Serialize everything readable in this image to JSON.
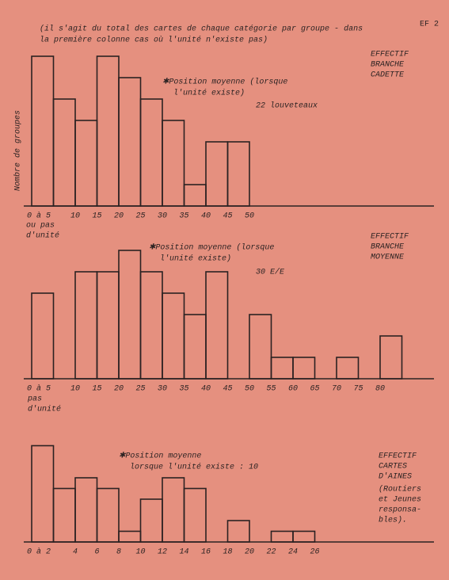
{
  "page_label": "EF 2",
  "note": [
    "(il s'agit du total des cartes de chaque catégorie par groupe - dans",
    "la première colonne cas où l'unité n'existe pas)"
  ],
  "chart_data": [
    {
      "type": "histogram",
      "y_label": "Nombre de groupes",
      "side_label": [
        "EFFECTIF",
        "BRANCHE",
        "CADETTE"
      ],
      "annotation": [
        "✱Position moyenne (lorsque",
        "l'unité existe)"
      ],
      "mean": "22 louveteaux",
      "edge_labels": [
        "0 à 5",
        null,
        "10",
        "15",
        "20",
        "25",
        "30",
        "35",
        "40",
        "45",
        "50"
      ],
      "edge_note": [
        "ou pas",
        "d'unité"
      ],
      "values": [
        7,
        5,
        4,
        7,
        6,
        5,
        4,
        1,
        3,
        3
      ],
      "ylim": [
        0,
        8
      ],
      "color": "#2b2222"
    },
    {
      "type": "histogram",
      "side_label": [
        "EFFECTIF",
        "BRANCHE",
        "MOYENNE"
      ],
      "annotation": [
        "✱Position moyenne (lorsque",
        "l'unité existe)"
      ],
      "mean": "30 E/E",
      "edge_labels": [
        "0 à 5",
        null,
        "10",
        "15",
        "20",
        "25",
        "30",
        "35",
        "40",
        "45",
        "50",
        "55",
        "60",
        "65",
        "70",
        "75",
        "80",
        null
      ],
      "edge_note": [
        "pas",
        "d'unité"
      ],
      "values": [
        4,
        0,
        5,
        5,
        6,
        5,
        4,
        3,
        5,
        0,
        3,
        1,
        1,
        0,
        1,
        0,
        2
      ],
      "ylim": [
        0,
        7
      ],
      "color": "#2b2222"
    },
    {
      "type": "histogram",
      "side_label": [
        "EFFECTIF",
        "CARTES",
        "D'AINES"
      ],
      "side_note": [
        "(Routiers",
        "et Jeunes",
        "responsa-",
        "bles)."
      ],
      "annotation": [
        "✱Position moyenne",
        "lorsque l'unité existe : 10"
      ],
      "edge_labels": [
        "0 à 2",
        null,
        "4",
        "6",
        "8",
        "10",
        "12",
        "14",
        "16",
        "18",
        "20",
        "22",
        "24",
        "26"
      ],
      "values": [
        9,
        5,
        6,
        5,
        1,
        4,
        6,
        5,
        0,
        2,
        0,
        1,
        1
      ],
      "ylim": [
        0,
        10
      ],
      "color": "#2b2222"
    }
  ]
}
